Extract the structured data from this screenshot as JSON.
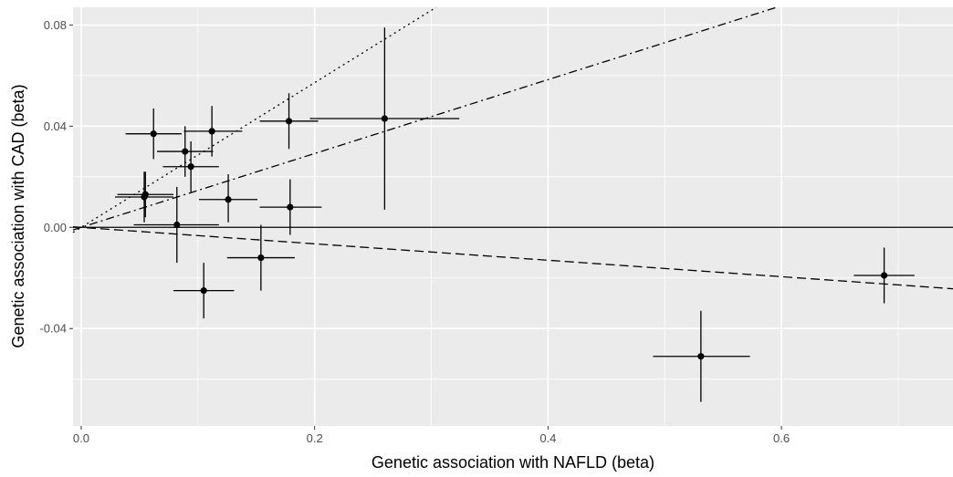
{
  "chart_data": {
    "type": "scatter",
    "title": "",
    "xlabel": "Genetic association with NAFLD (beta)",
    "ylabel": "Genetic association with CAD (beta)",
    "xlim": [
      -0.007,
      0.747
    ],
    "ylim": [
      -0.0785,
      0.087
    ],
    "x_ticks": [
      0.0,
      0.2,
      0.4,
      0.6
    ],
    "x_tick_labels": [
      "0.0",
      "0.2",
      "0.4",
      "0.6"
    ],
    "y_ticks": [
      -0.04,
      0.0,
      0.04,
      0.08
    ],
    "y_tick_labels": [
      "-0.04",
      "0.00",
      "0.04",
      "0.08"
    ],
    "grid": true,
    "panel_color": "#ebebeb",
    "grid_color": "#ffffff",
    "points": [
      {
        "x": 0.062,
        "y": 0.037,
        "x_lo": 0.038,
        "x_hi": 0.086,
        "y_lo": 0.027,
        "y_hi": 0.047
      },
      {
        "x": 0.089,
        "y": 0.03,
        "x_lo": 0.065,
        "x_hi": 0.113,
        "y_lo": 0.02,
        "y_hi": 0.04
      },
      {
        "x": 0.112,
        "y": 0.038,
        "x_lo": 0.088,
        "x_hi": 0.138,
        "y_lo": 0.028,
        "y_hi": 0.048
      },
      {
        "x": 0.094,
        "y": 0.024,
        "x_lo": 0.07,
        "x_hi": 0.118,
        "y_lo": 0.014,
        "y_hi": 0.034
      },
      {
        "x": 0.055,
        "y": 0.013,
        "x_lo": 0.031,
        "x_hi": 0.079,
        "y_lo": 0.004,
        "y_hi": 0.022
      },
      {
        "x": 0.054,
        "y": 0.012,
        "x_lo": 0.029,
        "x_hi": 0.079,
        "y_lo": 0.002,
        "y_hi": 0.022
      },
      {
        "x": 0.082,
        "y": 0.001,
        "x_lo": 0.045,
        "x_hi": 0.118,
        "y_lo": -0.014,
        "y_hi": 0.016
      },
      {
        "x": 0.126,
        "y": 0.011,
        "x_lo": 0.101,
        "x_hi": 0.151,
        "y_lo": 0.002,
        "y_hi": 0.021
      },
      {
        "x": 0.178,
        "y": 0.042,
        "x_lo": 0.153,
        "x_hi": 0.203,
        "y_lo": 0.031,
        "y_hi": 0.053
      },
      {
        "x": 0.179,
        "y": 0.008,
        "x_lo": 0.153,
        "x_hi": 0.206,
        "y_lo": -0.003,
        "y_hi": 0.019
      },
      {
        "x": 0.26,
        "y": 0.043,
        "x_lo": 0.196,
        "x_hi": 0.324,
        "y_lo": 0.007,
        "y_hi": 0.079
      },
      {
        "x": 0.154,
        "y": -0.012,
        "x_lo": 0.125,
        "x_hi": 0.183,
        "y_lo": -0.025,
        "y_hi": 0.001
      },
      {
        "x": 0.105,
        "y": -0.025,
        "x_lo": 0.079,
        "x_hi": 0.131,
        "y_lo": -0.036,
        "y_hi": -0.014
      },
      {
        "x": 0.531,
        "y": -0.051,
        "x_lo": 0.49,
        "x_hi": 0.573,
        "y_lo": -0.069,
        "y_hi": -0.033
      },
      {
        "x": 0.688,
        "y": -0.019,
        "x_lo": 0.662,
        "x_hi": 0.714,
        "y_lo": -0.03,
        "y_hi": -0.008
      }
    ],
    "lines": [
      {
        "slope": 0.0,
        "style": "solid"
      },
      {
        "slope": -0.0325,
        "style": "dashed"
      },
      {
        "slope": 0.146,
        "style": "dotdash"
      },
      {
        "slope": 0.286,
        "style": "dotted"
      }
    ]
  }
}
